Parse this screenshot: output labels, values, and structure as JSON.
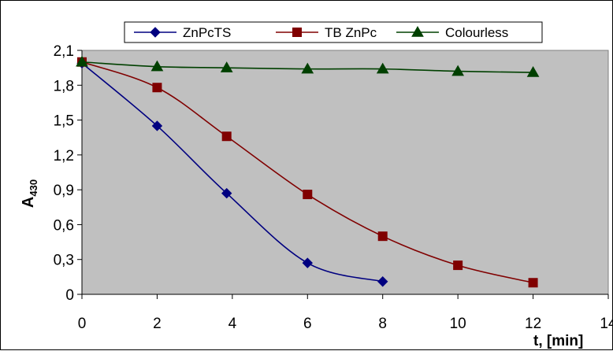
{
  "chart_data": {
    "type": "line",
    "title": "",
    "xlabel": "t, [min]",
    "ylabel": {
      "main": "A",
      "sub": "430"
    },
    "xlim": [
      0,
      14
    ],
    "ylim": [
      0,
      2.1
    ],
    "x_ticks": [
      "0",
      "2",
      "4",
      "6",
      "8",
      "10",
      "12",
      "14"
    ],
    "y_ticks": [
      "0",
      "0,3",
      "0,6",
      "0,9",
      "1,2",
      "1,5",
      "1,8",
      "2,1"
    ],
    "grid": false,
    "plot_background": "#c0c0c0",
    "legend_position": "top",
    "series": [
      {
        "name": "ZnPcTS",
        "color": "#000080",
        "marker": "diamond",
        "x": [
          0,
          2,
          3.85,
          6,
          8
        ],
        "y": [
          1.99,
          1.45,
          0.87,
          0.27,
          0.11
        ]
      },
      {
        "name": "TB ZnPc",
        "color": "#800000",
        "marker": "square",
        "x": [
          0,
          2,
          3.85,
          6,
          8,
          10,
          12
        ],
        "y": [
          2.0,
          1.78,
          1.36,
          0.86,
          0.5,
          0.25,
          0.1
        ]
      },
      {
        "name": "Colourless",
        "color": "#004000",
        "marker": "triangle",
        "x": [
          0,
          2,
          3.85,
          6,
          8,
          10,
          12
        ],
        "y": [
          2.0,
          1.96,
          1.95,
          1.94,
          1.94,
          1.92,
          1.91
        ]
      }
    ]
  }
}
